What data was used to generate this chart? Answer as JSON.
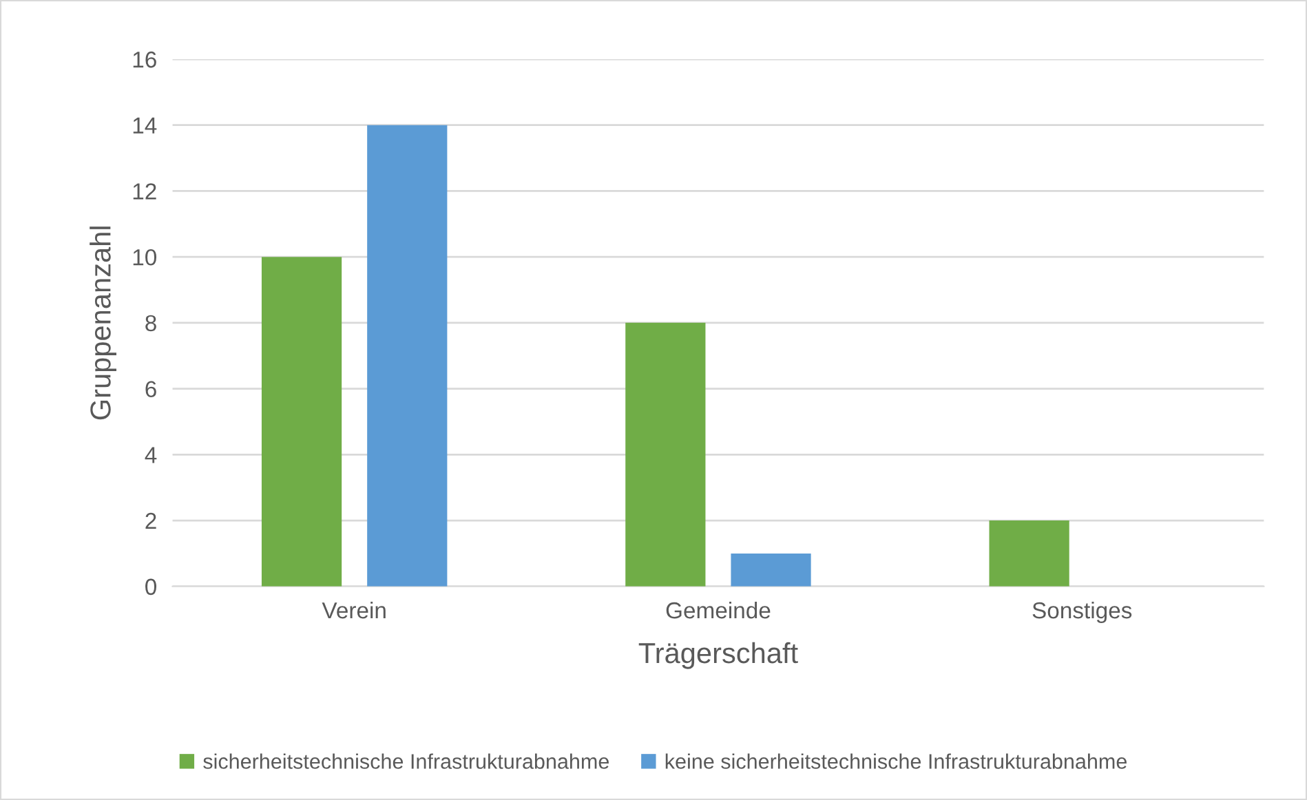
{
  "chart_data": {
    "type": "bar",
    "xlabel": "Trägerschaft",
    "ylabel": "Gruppenanzahl",
    "categories": [
      "Verein",
      "Gemeinde",
      "Sonstiges"
    ],
    "series": [
      {
        "name": "sicherheitstechnische Infrastrukturabnahme",
        "color": "#70ad47",
        "values": [
          10,
          8,
          2
        ]
      },
      {
        "name": "keine sicherheitstechnische Infrastrukturabnahme",
        "color": "#5b9bd5",
        "values": [
          14,
          1,
          0
        ]
      }
    ],
    "ylim": [
      0,
      16
    ],
    "yticks": [
      0,
      2,
      4,
      6,
      8,
      10,
      12,
      14,
      16
    ],
    "grid": "y",
    "legend": "bottom"
  }
}
